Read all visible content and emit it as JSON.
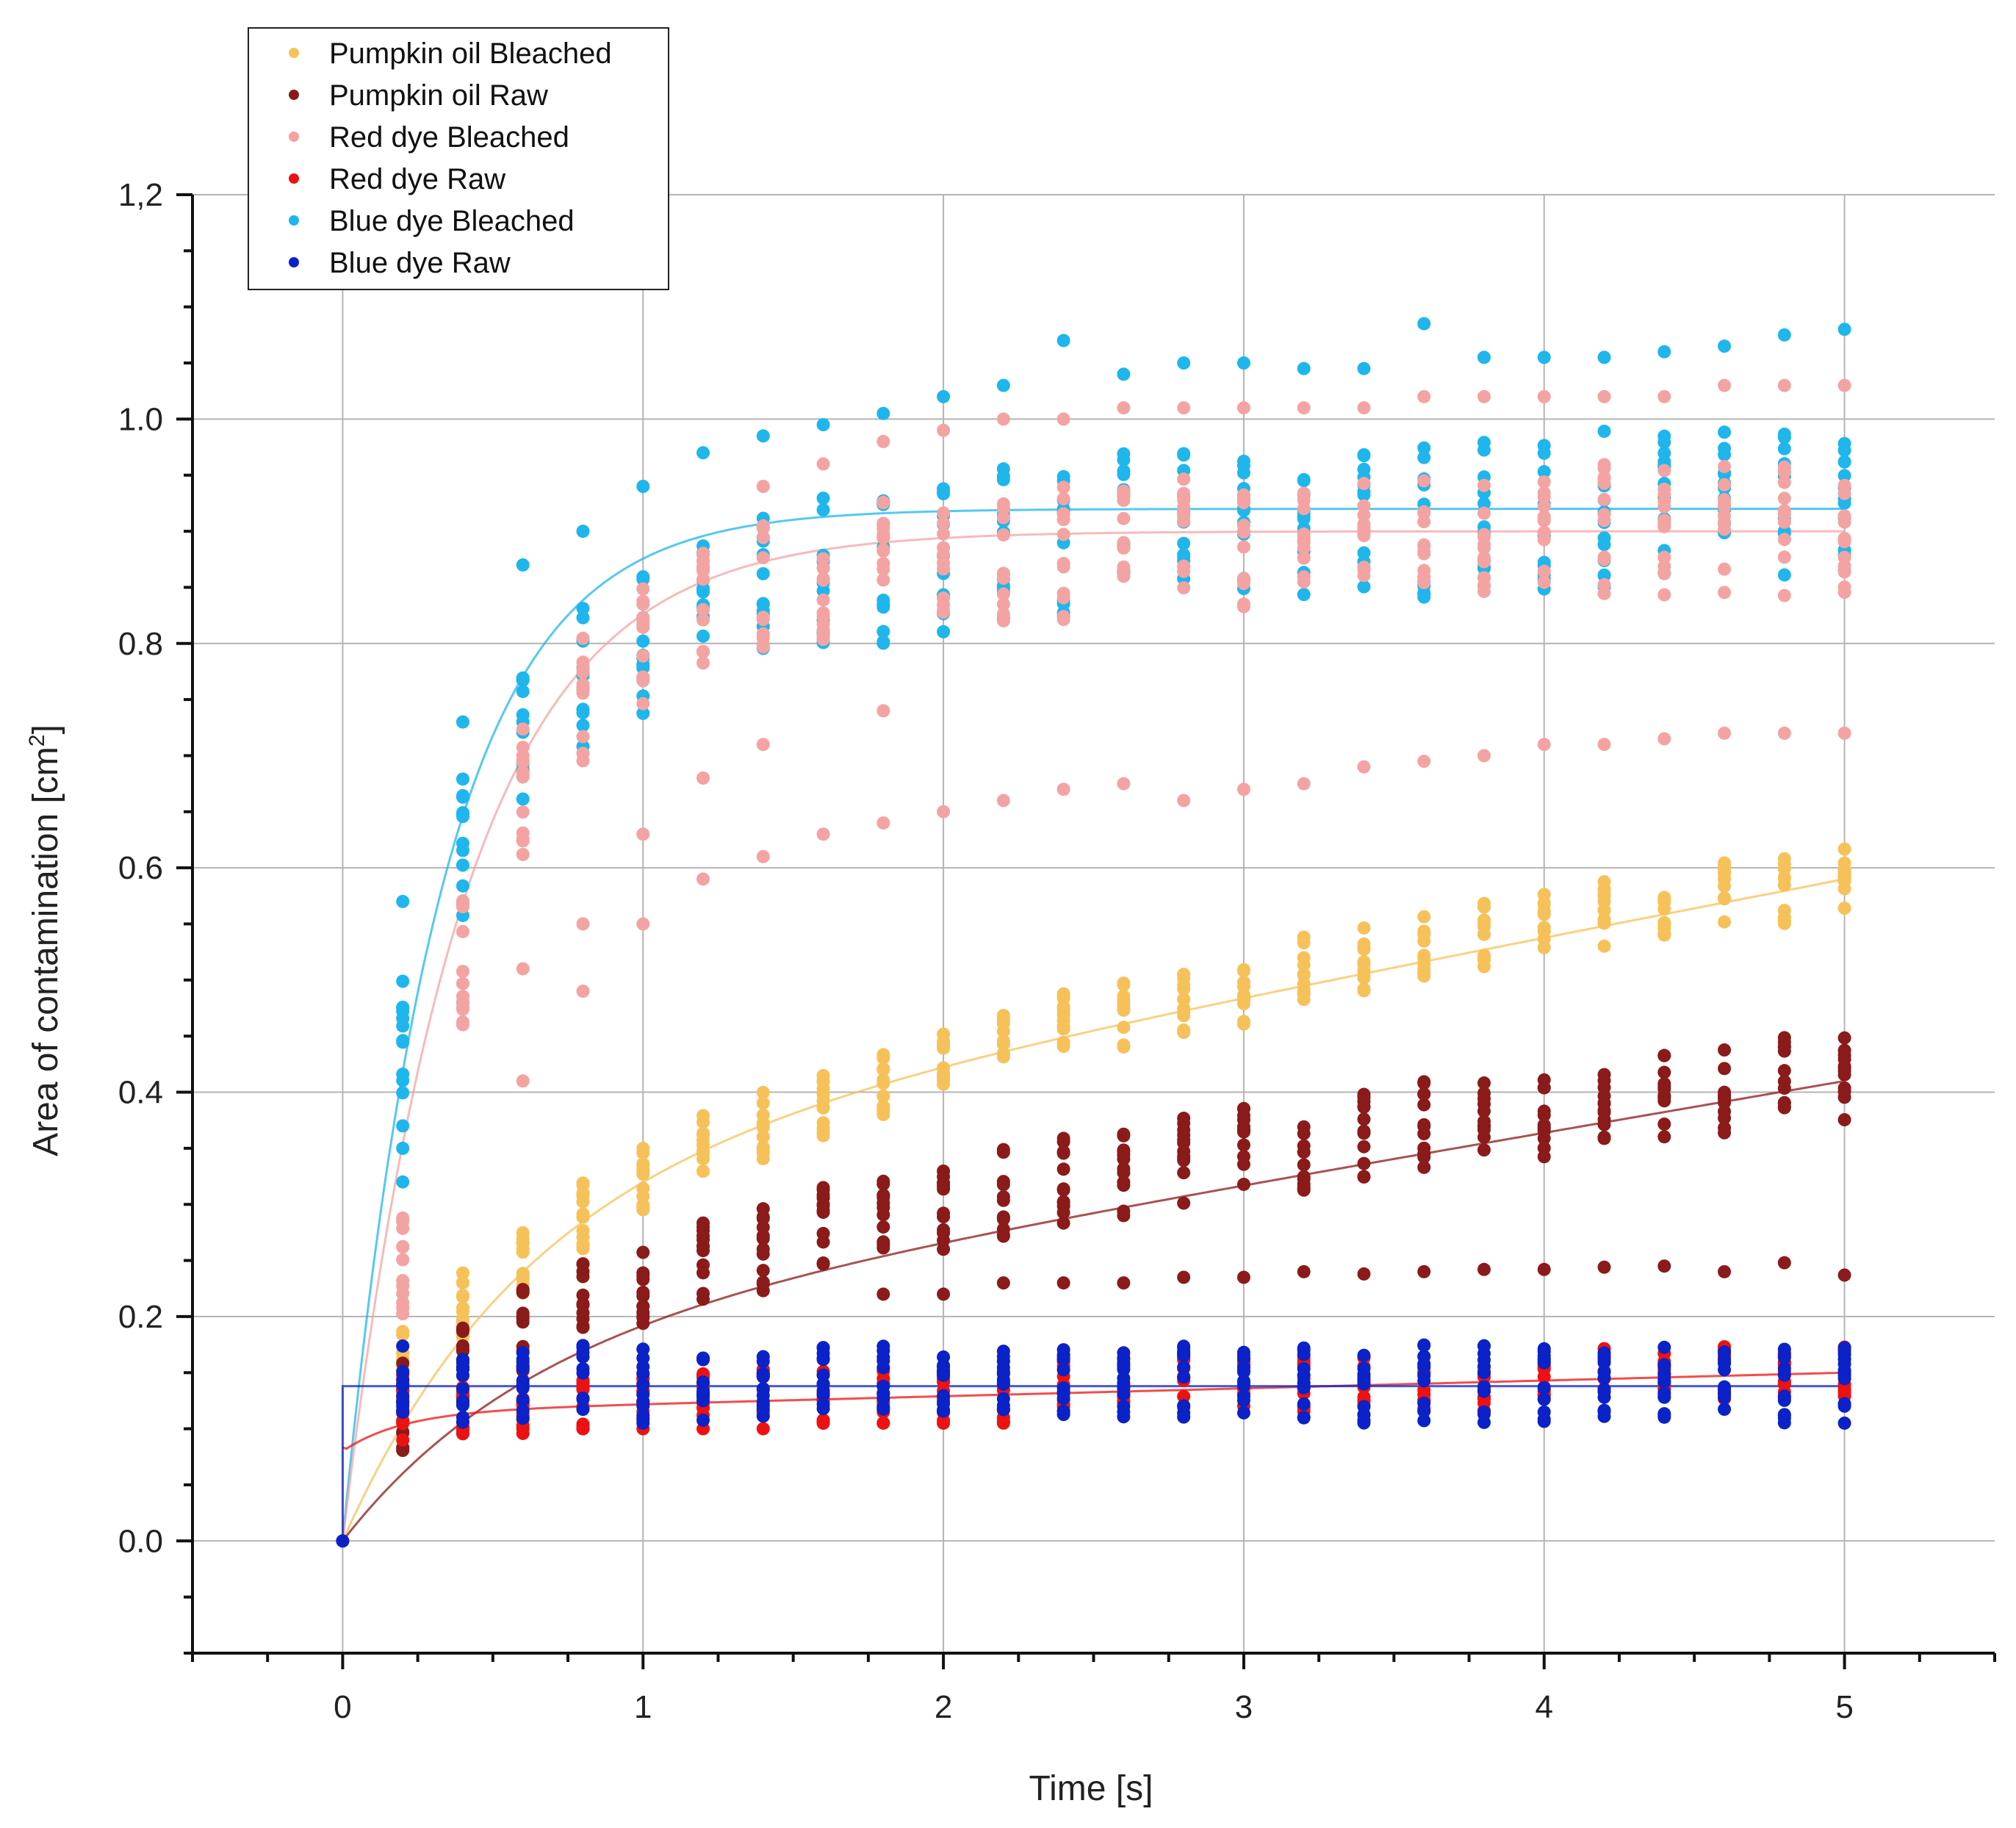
{
  "chart_data": {
    "type": "scatter",
    "xlabel": "Time [s]",
    "ylabel": "Area of contamination [cm",
    "ylabel_sup": "2",
    "ylabel_close": "]",
    "xlim": [
      -0.5,
      5.5
    ],
    "ylim": [
      -0.1,
      1.2
    ],
    "xticks": [
      0,
      1,
      2,
      3,
      4,
      5
    ],
    "xtick_labels": [
      "0",
      "1",
      "2",
      "3",
      "4",
      "5"
    ],
    "yticks": [
      0.0,
      0.2,
      0.4,
      0.6,
      0.8,
      1.0,
      1.2
    ],
    "ytick_labels": [
      "0.0",
      "0.2",
      "0.4",
      "0.6",
      "0.8",
      "1.0",
      "1,2"
    ],
    "grid": true,
    "legend_position": "top-left",
    "x": [
      0.2,
      0.4,
      0.6,
      0.8,
      1.0,
      1.2,
      1.4,
      1.6,
      1.8,
      2.0,
      2.2,
      2.4,
      2.6,
      2.8,
      3.0,
      3.2,
      3.4,
      3.6,
      3.8,
      4.0,
      4.2,
      4.4,
      4.6,
      4.8,
      5.0
    ],
    "series": [
      {
        "name": "Pumpkin oil Bleached",
        "color": "#F7C15A",
        "fit": {
          "model": "a*(1-exp(-t/tau))+c*t",
          "a": 0.33,
          "tau": 0.6,
          "c": 0.052
        },
        "centers": [
          0.16,
          0.21,
          0.25,
          0.29,
          0.32,
          0.35,
          0.37,
          0.39,
          0.41,
          0.43,
          0.44,
          0.46,
          0.47,
          0.48,
          0.49,
          0.51,
          0.52,
          0.53,
          0.54,
          0.55,
          0.56,
          0.57,
          0.58,
          0.58,
          0.59
        ],
        "spread": 0.03,
        "extra_points": []
      },
      {
        "name": "Pumpkin oil Raw",
        "color": "#8B1A1A",
        "fit": {
          "model": "a*(1-exp(-t/tau))+c*t",
          "a": 0.18,
          "tau": 0.6,
          "c": 0.046
        },
        "centers": [
          0.12,
          0.16,
          0.19,
          0.21,
          0.23,
          0.25,
          0.26,
          0.28,
          0.29,
          0.3,
          0.31,
          0.32,
          0.33,
          0.34,
          0.35,
          0.35,
          0.36,
          0.37,
          0.37,
          0.38,
          0.39,
          0.4,
          0.4,
          0.41,
          0.41
        ],
        "spread": 0.04,
        "extra_points": [
          [
            1.8,
            0.22
          ],
          [
            2.0,
            0.22
          ],
          [
            2.2,
            0.23
          ],
          [
            2.4,
            0.23
          ],
          [
            2.6,
            0.23
          ],
          [
            2.8,
            0.235
          ],
          [
            3.0,
            0.235
          ],
          [
            3.2,
            0.24
          ],
          [
            3.4,
            0.238
          ],
          [
            3.6,
            0.24
          ],
          [
            3.8,
            0.242
          ],
          [
            4.0,
            0.242
          ],
          [
            4.2,
            0.244
          ],
          [
            4.4,
            0.245
          ],
          [
            4.6,
            0.24
          ],
          [
            4.8,
            0.248
          ],
          [
            5.0,
            0.237
          ]
        ]
      },
      {
        "name": "Red dye Bleached",
        "color": "#F4A3A3",
        "fit": {
          "model": "a*(1-exp(-t/tau))",
          "a": 0.9,
          "tau": 0.4
        },
        "centers": [
          0.24,
          0.52,
          0.67,
          0.75,
          0.8,
          0.83,
          0.85,
          0.86,
          0.87,
          0.88,
          0.88,
          0.88,
          0.89,
          0.89,
          0.89,
          0.89,
          0.89,
          0.9,
          0.9,
          0.9,
          0.9,
          0.9,
          0.9,
          0.9,
          0.9
        ],
        "spread": 0.06,
        "extra_points": [
          [
            0.6,
            0.41
          ],
          [
            0.6,
            0.51
          ],
          [
            0.8,
            0.49
          ],
          [
            0.8,
            0.55
          ],
          [
            1.0,
            0.55
          ],
          [
            1.0,
            0.63
          ],
          [
            1.2,
            0.59
          ],
          [
            1.2,
            0.68
          ],
          [
            1.4,
            0.61
          ],
          [
            1.4,
            0.71
          ],
          [
            1.6,
            0.63
          ],
          [
            1.8,
            0.64
          ],
          [
            1.8,
            0.74
          ],
          [
            2.0,
            0.65
          ],
          [
            2.2,
            0.66
          ],
          [
            2.4,
            0.67
          ],
          [
            2.6,
            0.675
          ],
          [
            2.8,
            0.66
          ],
          [
            3.0,
            0.67
          ],
          [
            3.2,
            0.675
          ],
          [
            3.4,
            0.69
          ],
          [
            3.6,
            0.695
          ],
          [
            3.8,
            0.7
          ],
          [
            4.0,
            0.71
          ],
          [
            4.2,
            0.71
          ],
          [
            4.4,
            0.715
          ],
          [
            4.6,
            0.72
          ],
          [
            4.8,
            0.72
          ],
          [
            5.0,
            0.72
          ],
          [
            1.4,
            0.94
          ],
          [
            1.6,
            0.96
          ],
          [
            1.8,
            0.98
          ],
          [
            2.0,
            0.99
          ],
          [
            2.2,
            1.0
          ],
          [
            2.4,
            1.0
          ],
          [
            2.6,
            1.01
          ],
          [
            2.8,
            1.01
          ],
          [
            3.0,
            1.01
          ],
          [
            3.2,
            1.01
          ],
          [
            3.4,
            1.01
          ],
          [
            3.6,
            1.02
          ],
          [
            3.8,
            1.02
          ],
          [
            4.0,
            1.02
          ],
          [
            4.2,
            1.02
          ],
          [
            4.4,
            1.02
          ],
          [
            4.6,
            1.03
          ],
          [
            4.8,
            1.03
          ],
          [
            5.0,
            1.03
          ]
        ]
      },
      {
        "name": "Red dye Raw",
        "color": "#EE1111",
        "fit": {
          "model": "a*(1-exp(-t/tau))+b+c*t",
          "a": 0.035,
          "tau": 0.2,
          "b": 0.08,
          "c": 0.007
        },
        "centers": [
          0.12,
          0.12,
          0.12,
          0.12,
          0.13,
          0.13,
          0.13,
          0.13,
          0.13,
          0.13,
          0.13,
          0.14,
          0.14,
          0.14,
          0.14,
          0.14,
          0.14,
          0.14,
          0.14,
          0.15,
          0.15,
          0.15,
          0.15,
          0.15,
          0.15
        ],
        "spread": 0.025,
        "extra_points": [
          [
            0.2,
            0.09
          ],
          [
            0.4,
            0.1
          ],
          [
            0.6,
            0.1
          ],
          [
            0.8,
            0.1
          ],
          [
            1.0,
            0.1
          ],
          [
            1.2,
            0.1
          ],
          [
            1.4,
            0.1
          ],
          [
            1.6,
            0.105
          ],
          [
            1.8,
            0.105
          ],
          [
            2.0,
            0.105
          ],
          [
            2.2,
            0.11
          ]
        ]
      },
      {
        "name": "Blue dye Bleached",
        "color": "#1EB6EC",
        "fit": {
          "model": "a*(1-exp(-t/tau))",
          "a": 0.92,
          "tau": 0.33
        },
        "centers": [
          0.44,
          0.62,
          0.71,
          0.77,
          0.8,
          0.83,
          0.85,
          0.86,
          0.87,
          0.88,
          0.89,
          0.89,
          0.9,
          0.9,
          0.9,
          0.91,
          0.91,
          0.91,
          0.91,
          0.91,
          0.92,
          0.92,
          0.92,
          0.92,
          0.92
        ],
        "spread": 0.07,
        "extra_points": [
          [
            0.2,
            0.32
          ],
          [
            0.2,
            0.35
          ],
          [
            0.2,
            0.57
          ],
          [
            0.4,
            0.48
          ],
          [
            0.4,
            0.73
          ],
          [
            0.6,
            0.87
          ],
          [
            0.8,
            0.9
          ],
          [
            1.0,
            0.94
          ],
          [
            1.2,
            0.97
          ],
          [
            1.4,
            0.985
          ],
          [
            1.6,
            0.995
          ],
          [
            1.8,
            1.005
          ],
          [
            2.0,
            1.02
          ],
          [
            2.2,
            1.03
          ],
          [
            2.4,
            1.07
          ],
          [
            2.6,
            1.04
          ],
          [
            2.8,
            1.05
          ],
          [
            3.0,
            1.05
          ],
          [
            3.2,
            1.045
          ],
          [
            3.4,
            1.045
          ],
          [
            3.6,
            1.085
          ],
          [
            3.8,
            1.055
          ],
          [
            4.0,
            1.055
          ],
          [
            4.2,
            1.055
          ],
          [
            4.4,
            1.06
          ],
          [
            4.6,
            1.065
          ],
          [
            4.8,
            1.075
          ],
          [
            5.0,
            1.08
          ]
        ]
      },
      {
        "name": "Blue dye Raw",
        "color": "#0A22C8",
        "fit": {
          "model": "constant",
          "b": 0.138
        },
        "centers": [
          0.14,
          0.14,
          0.14,
          0.14,
          0.14,
          0.14,
          0.14,
          0.14,
          0.14,
          0.14,
          0.14,
          0.14,
          0.14,
          0.14,
          0.14,
          0.14,
          0.14,
          0.14,
          0.14,
          0.14,
          0.14,
          0.14,
          0.14,
          0.14,
          0.14
        ],
        "spread": 0.035,
        "extra_points": [
          [
            0.0,
            0.0
          ]
        ]
      }
    ]
  }
}
